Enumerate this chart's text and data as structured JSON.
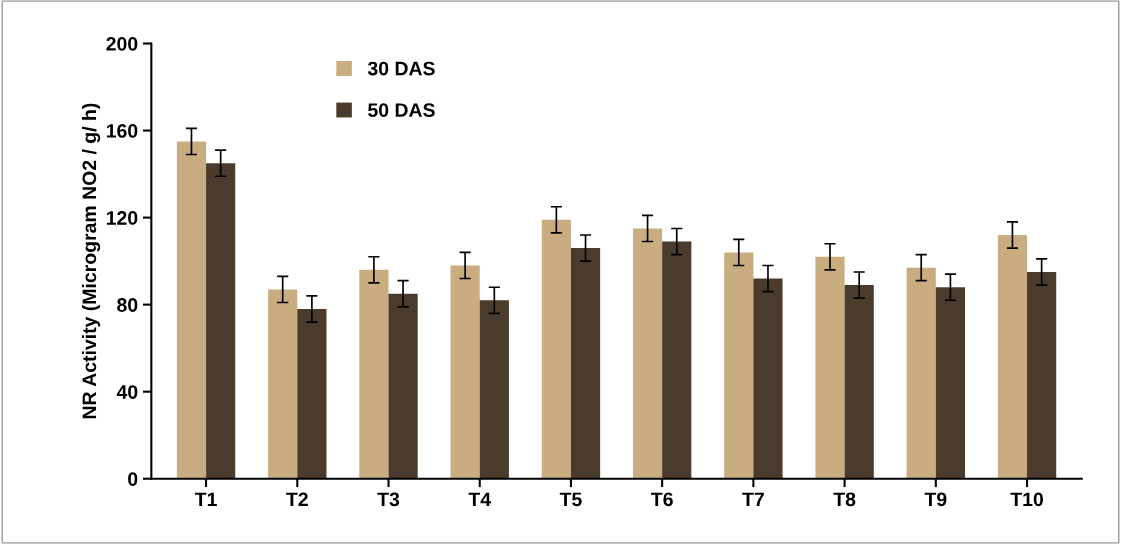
{
  "chart_data": {
    "type": "bar",
    "ylabel": "NR Activity (Microgram NO2 / g/ h)",
    "categories": [
      "T1",
      "T2",
      "T3",
      "T4",
      "T5",
      "T6",
      "T7",
      "T8",
      "T9",
      "T10"
    ],
    "series": [
      {
        "name": "30 DAS",
        "color": "#c9ad80",
        "values": [
          155,
          87,
          96,
          98,
          119,
          115,
          104,
          102,
          97,
          112
        ],
        "errors": [
          6,
          6,
          6,
          6,
          6,
          6,
          6,
          6,
          6,
          6
        ]
      },
      {
        "name": "50 DAS",
        "color": "#4b3b2d",
        "values": [
          145,
          78,
          85,
          82,
          106,
          109,
          92,
          89,
          88,
          95
        ],
        "errors": [
          6,
          6,
          6,
          6,
          6,
          6,
          6,
          6,
          6,
          6
        ]
      }
    ],
    "ylim": [
      0,
      200
    ],
    "yticks": [
      0,
      40,
      80,
      120,
      160,
      200
    ],
    "grid": false,
    "legend": "top left"
  }
}
